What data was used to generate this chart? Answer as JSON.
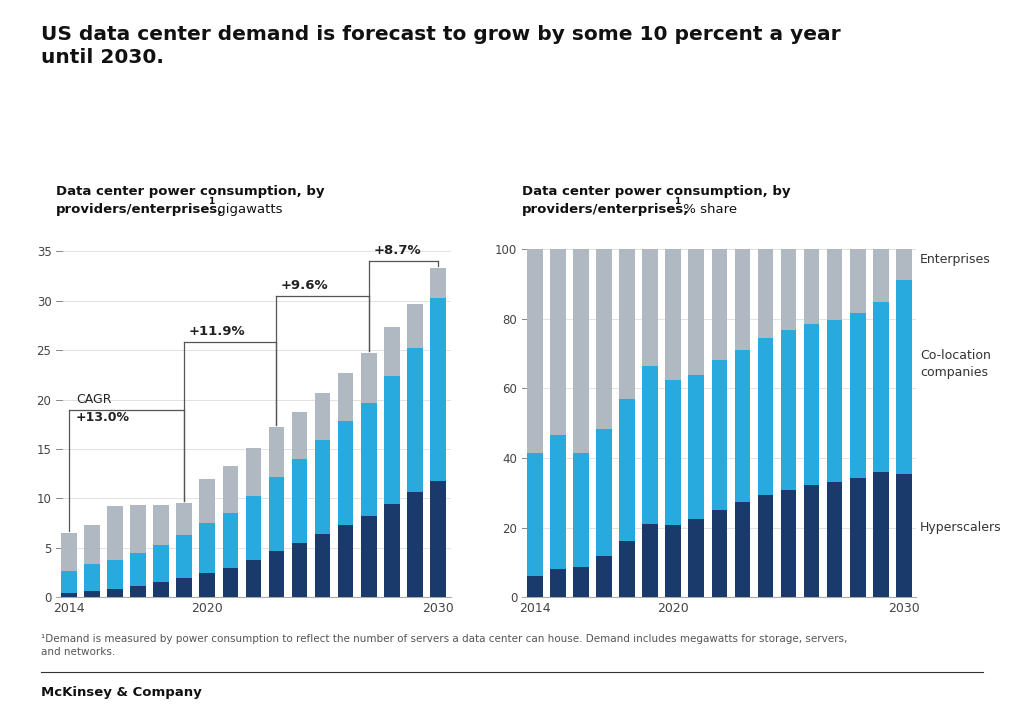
{
  "title": "US data center demand is forecast to grow by some 10 percent a year\nuntil 2030.",
  "left_subtitle_line1": "Data center power consumption, by",
  "left_subtitle_line2": "providers/enterprises,",
  "left_subtitle_sup": "1",
  "left_subtitle_unit": " gigawatts",
  "right_subtitle_line1": "Data center power consumption, by",
  "right_subtitle_line2": "providers/enterprises,",
  "right_subtitle_sup": "1",
  "right_subtitle_unit": " % share",
  "years": [
    2014,
    2015,
    2016,
    2017,
    2018,
    2019,
    2020,
    2021,
    2022,
    2023,
    2024,
    2025,
    2026,
    2027,
    2028,
    2029,
    2030
  ],
  "hyperscalers": [
    0.4,
    0.6,
    0.8,
    1.1,
    1.5,
    2.0,
    2.5,
    3.0,
    3.8,
    4.7,
    5.5,
    6.4,
    7.3,
    8.2,
    9.4,
    10.7,
    11.8
  ],
  "colocation": [
    2.3,
    2.8,
    3.0,
    3.4,
    3.8,
    4.3,
    5.0,
    5.5,
    6.5,
    7.5,
    8.5,
    9.5,
    10.5,
    11.5,
    13.0,
    14.5,
    18.5
  ],
  "enterprises": [
    3.8,
    3.9,
    5.4,
    4.8,
    4.0,
    3.2,
    4.5,
    4.8,
    4.8,
    5.0,
    4.8,
    4.8,
    4.9,
    5.0,
    5.0,
    4.5,
    3.0
  ],
  "color_hyperscalers": "#1a3a6b",
  "color_colocation": "#29aadf",
  "color_enterprises": "#b0b8c1",
  "cagr_label_line1": "CAGR",
  "cagr_label_line2": "+13.0%",
  "period1_label": "+11.9%",
  "period2_label": "+9.6%",
  "period3_label": "+8.7%",
  "footnote": "¹Demand is measured by power consumption to reflect the number of servers a data center can house. Demand includes megawatts for storage, servers,\nand networks.",
  "source": "McKinsey & Company",
  "background_color": "#ffffff",
  "legend_enterprises": "Enterprises",
  "legend_colocation": "Co-location\ncompanies",
  "legend_hyperscalers": "Hyperscalers"
}
